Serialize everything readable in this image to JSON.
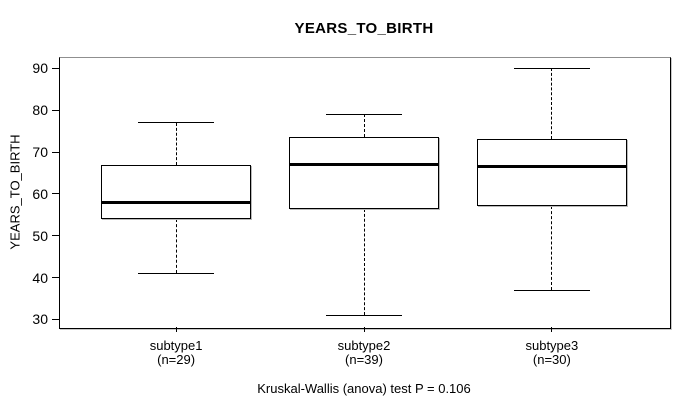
{
  "chart_data": {
    "type": "boxplot",
    "title": "YEARS_TO_BIRTH",
    "ylabel": "YEARS_TO_BIRTH",
    "xlabel": "",
    "footnote": "Kruskal-Wallis (anova) test P = 0.106",
    "yticks": [
      30,
      40,
      50,
      60,
      70,
      80,
      90
    ],
    "ylim": [
      28.2,
      92.7
    ],
    "grid": false,
    "legend": null,
    "categories": [
      "subtype1",
      "subtype2",
      "subtype3"
    ],
    "count_labels": [
      "(n=29)",
      "(n=39)",
      "(n=30)"
    ],
    "series": [
      {
        "name": "subtype1",
        "n": 29,
        "whisker_low": 41,
        "q1": 54,
        "median": 58,
        "q3": 67,
        "whisker_high": 77
      },
      {
        "name": "subtype2",
        "n": 39,
        "whisker_low": 31,
        "q1": 56.5,
        "median": 67,
        "q3": 73.5,
        "whisker_high": 79
      },
      {
        "name": "subtype3",
        "n": 30,
        "whisker_low": 37,
        "q1": 57,
        "median": 66.5,
        "q3": 73,
        "whisker_high": 90
      }
    ],
    "colors": {
      "line": "#000000",
      "box_fill": "#ffffff",
      "background": "#ffffff"
    }
  }
}
